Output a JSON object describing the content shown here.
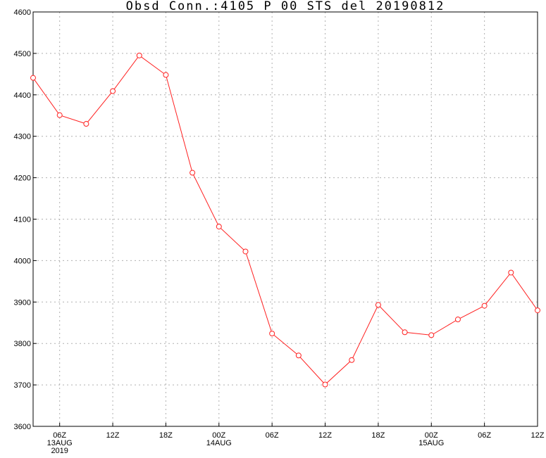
{
  "chart_data": {
    "type": "line",
    "title": "Obsd Conn.:4105 P 00 STS del 20190812",
    "xlabel": "",
    "ylabel": "",
    "ylim": [
      3600,
      4600
    ],
    "y_ticks": [
      "3600",
      "3700",
      "3800",
      "3900",
      "4000",
      "4100",
      "4200",
      "4300",
      "4400",
      "4500",
      "4600"
    ],
    "x_range": [
      "2019-08-13 03Z",
      "2019-08-15 12Z"
    ],
    "x_ticks": [
      {
        "x": "2019-08-13 06Z",
        "lines": [
          "06Z",
          "13AUG",
          "2019"
        ]
      },
      {
        "x": "2019-08-13 12Z",
        "lines": [
          "12Z"
        ]
      },
      {
        "x": "2019-08-13 18Z",
        "lines": [
          "18Z"
        ]
      },
      {
        "x": "2019-08-14 00Z",
        "lines": [
          "00Z",
          "14AUG"
        ]
      },
      {
        "x": "2019-08-14 06Z",
        "lines": [
          "06Z"
        ]
      },
      {
        "x": "2019-08-14 12Z",
        "lines": [
          "12Z"
        ]
      },
      {
        "x": "2019-08-14 18Z",
        "lines": [
          "18Z"
        ]
      },
      {
        "x": "2019-08-15 00Z",
        "lines": [
          "00Z",
          "15AUG"
        ]
      },
      {
        "x": "2019-08-15 06Z",
        "lines": [
          "06Z"
        ]
      },
      {
        "x": "2019-08-15 12Z",
        "lines": [
          "12Z"
        ]
      }
    ],
    "grid": true,
    "line_color": "#ff2020",
    "marker": "open-circle",
    "series": [
      {
        "x": [
          "2019-08-13 03Z",
          "2019-08-13 06Z",
          "2019-08-13 09Z",
          "2019-08-13 12Z",
          "2019-08-13 15Z",
          "2019-08-13 18Z",
          "2019-08-13 21Z",
          "2019-08-14 00Z",
          "2019-08-14 03Z",
          "2019-08-14 06Z",
          "2019-08-14 09Z",
          "2019-08-14 12Z",
          "2019-08-14 15Z",
          "2019-08-14 18Z",
          "2019-08-14 21Z",
          "2019-08-15 00Z",
          "2019-08-15 03Z",
          "2019-08-15 06Z",
          "2019-08-15 09Z",
          "2019-08-15 12Z"
        ],
        "values": [
          4441,
          4351,
          4330,
          4409,
          4495,
          4448,
          4212,
          4082,
          4022,
          3824,
          3771,
          3701,
          3760,
          3893,
          3827,
          3820,
          3858,
          3891,
          3971,
          3880
        ]
      }
    ]
  }
}
